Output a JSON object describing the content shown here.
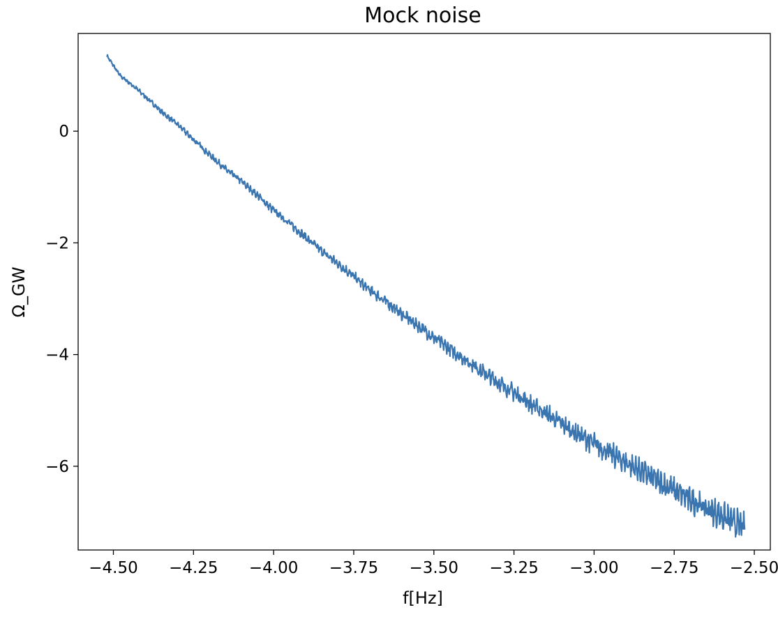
{
  "chart_data": {
    "type": "line",
    "title": "Mock noise",
    "xlabel": "f[Hz]",
    "ylabel": "Ω_GW",
    "xlim": [
      -4.61,
      -2.45
    ],
    "ylim": [
      -7.5,
      1.75
    ],
    "xticks": [
      {
        "value": -4.5,
        "label": "−4.50"
      },
      {
        "value": -4.25,
        "label": "−4.25"
      },
      {
        "value": -4.0,
        "label": "−4.00"
      },
      {
        "value": -3.75,
        "label": "−3.75"
      },
      {
        "value": -3.5,
        "label": "−3.50"
      },
      {
        "value": -3.25,
        "label": "−3.25"
      },
      {
        "value": -3.0,
        "label": "−3.00"
      },
      {
        "value": -2.75,
        "label": "−2.75"
      },
      {
        "value": -2.5,
        "label": "−2.50"
      }
    ],
    "yticks": [
      {
        "value": 0,
        "label": "0"
      },
      {
        "value": -2,
        "label": "−2"
      },
      {
        "value": -4,
        "label": "−4"
      },
      {
        "value": -6,
        "label": "−6"
      }
    ],
    "grid": false,
    "legend": false,
    "series": [
      {
        "color": "#3b75af",
        "x": [
          -4.52,
          -4.48,
          -4.44,
          -4.4,
          -4.35,
          -4.3,
          -4.25,
          -4.2,
          -4.15,
          -4.1,
          -4.05,
          -4.0,
          -3.95,
          -3.9,
          -3.85,
          -3.8,
          -3.75,
          -3.7,
          -3.65,
          -3.6,
          -3.55,
          -3.5,
          -3.45,
          -3.4,
          -3.35,
          -3.3,
          -3.25,
          -3.2,
          -3.15,
          -3.1,
          -3.05,
          -3.0,
          -2.95,
          -2.9,
          -2.85,
          -2.8,
          -2.75,
          -2.7,
          -2.65,
          -2.6,
          -2.55,
          -2.53
        ],
        "y": [
          1.35,
          1.0,
          0.82,
          0.62,
          0.35,
          0.12,
          -0.15,
          -0.42,
          -0.68,
          -0.9,
          -1.15,
          -1.42,
          -1.65,
          -1.9,
          -2.15,
          -2.37,
          -2.6,
          -2.85,
          -3.05,
          -3.28,
          -3.48,
          -3.7,
          -3.9,
          -4.1,
          -4.3,
          -4.5,
          -4.68,
          -4.88,
          -5.05,
          -5.25,
          -5.43,
          -5.6,
          -5.77,
          -5.93,
          -6.1,
          -6.27,
          -6.43,
          -6.6,
          -6.75,
          -6.9,
          -7.05,
          -7.1
        ]
      }
    ],
    "noise_envelope": [
      0.04,
      0.05,
      0.05,
      0.06,
      0.06,
      0.07,
      0.07,
      0.08,
      0.08,
      0.09,
      0.09,
      0.1,
      0.1,
      0.11,
      0.11,
      0.12,
      0.12,
      0.13,
      0.13,
      0.14,
      0.15,
      0.16,
      0.17,
      0.18,
      0.19,
      0.2,
      0.21,
      0.22,
      0.23,
      0.24,
      0.25,
      0.26,
      0.27,
      0.28,
      0.29,
      0.3,
      0.31,
      0.32,
      0.33,
      0.34,
      0.35,
      0.35
    ]
  }
}
